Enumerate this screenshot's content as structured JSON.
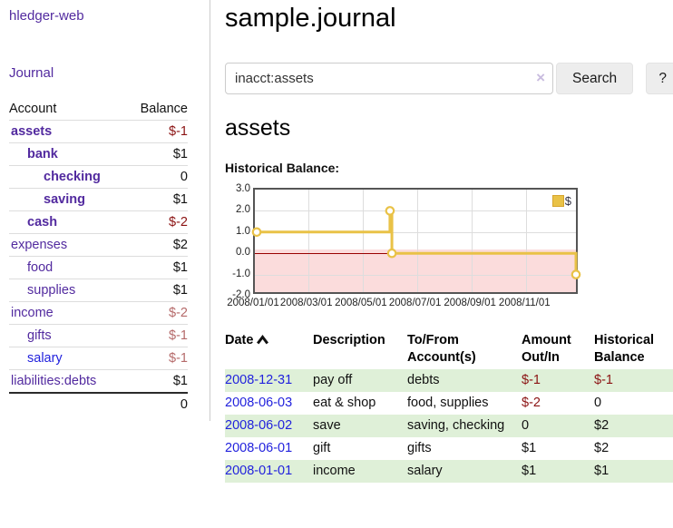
{
  "sidebar": {
    "brand": "hledger-web",
    "journal_link": "Journal",
    "header": {
      "account": "Account",
      "balance": "Balance"
    },
    "accounts": [
      {
        "name": "assets",
        "balance": "$-1"
      },
      {
        "name": "bank",
        "balance": "$1"
      },
      {
        "name": "checking",
        "balance": "0"
      },
      {
        "name": "saving",
        "balance": "$1"
      },
      {
        "name": "cash",
        "balance": "$-2"
      },
      {
        "name": "expenses",
        "balance": "$2"
      },
      {
        "name": "food",
        "balance": "$1"
      },
      {
        "name": "supplies",
        "balance": "$1"
      },
      {
        "name": "income",
        "balance": "$-2"
      },
      {
        "name": "gifts",
        "balance": "$-1"
      },
      {
        "name": "salary",
        "balance": "$-1"
      },
      {
        "name": "liabilities:debts",
        "balance": "$1"
      }
    ],
    "total": "0"
  },
  "main": {
    "title": "sample.journal",
    "search": {
      "value": "inacct:assets",
      "clear_icon": "×",
      "search_button": "Search",
      "help_button": "?"
    },
    "account_heading": "assets",
    "section_label": "Historical Balance:"
  },
  "chart_data": {
    "type": "line",
    "step": true,
    "title": "Historical Balance:",
    "x_range": [
      "2008-01-01",
      "2008-12-31"
    ],
    "ylim": [
      -2.0,
      3.0
    ],
    "yticks": [
      "3.0",
      "2.0",
      "1.0",
      "0.0",
      "-1.0",
      "-2.0"
    ],
    "xticks": [
      {
        "label": "2008/01/01",
        "f": 0.0
      },
      {
        "label": "2008/03/01",
        "f": 0.164
      },
      {
        "label": "2008/05/01",
        "f": 0.332
      },
      {
        "label": "2008/07/01",
        "f": 0.499
      },
      {
        "label": "2008/09/01",
        "f": 0.668
      },
      {
        "label": "2008/11/01",
        "f": 0.836
      }
    ],
    "series": [
      {
        "name": "$",
        "color": "#e9c247",
        "points": [
          {
            "date": "2008-01-01",
            "f": 0.0,
            "value": 1
          },
          {
            "date": "2008-06-01",
            "f": 0.416,
            "value": 2
          },
          {
            "date": "2008-06-03",
            "f": 0.422,
            "value": 0
          },
          {
            "date": "2008-12-31",
            "f": 1.0,
            "value": -1
          }
        ]
      }
    ],
    "legend": {
      "label": "$",
      "position": "top-right"
    },
    "grid": true,
    "negative_fill": "#fbdcdc",
    "zero_line_color": "#990000"
  },
  "register": {
    "headers": {
      "date": "Date",
      "description": "Description",
      "accounts_line1": "To/From",
      "accounts_line2": "Account(s)",
      "amount_line1": "Amount",
      "amount_line2": "Out/In",
      "balance_line1": "Historical",
      "balance_line2": "Balance"
    },
    "rows": [
      {
        "date": "2008-12-31",
        "description": "pay off",
        "accounts": "debts",
        "amount": "$-1",
        "balance": "$-1"
      },
      {
        "date": "2008-06-03",
        "description": "eat & shop",
        "accounts": "food, supplies",
        "amount": "$-2",
        "balance": "0"
      },
      {
        "date": "2008-06-02",
        "description": "save",
        "accounts": "saving, checking",
        "amount": "0",
        "balance": "$2"
      },
      {
        "date": "2008-06-01",
        "description": "gift",
        "accounts": "gifts",
        "amount": "$1",
        "balance": "$2"
      },
      {
        "date": "2008-01-01",
        "description": "income",
        "accounts": "salary",
        "amount": "$1",
        "balance": "$1"
      }
    ]
  },
  "colors": {
    "accent_purple": "#522a9f",
    "link_blue": "#2222dd",
    "negative_strong": "#8b1313",
    "negative_soft": "#b56a6a",
    "row_green": "#dff0d8",
    "chart_line": "#e9c247",
    "chart_negative_fill": "#fbdcdc",
    "chart_zero_line": "#990000",
    "button_bg": "#ededed"
  }
}
